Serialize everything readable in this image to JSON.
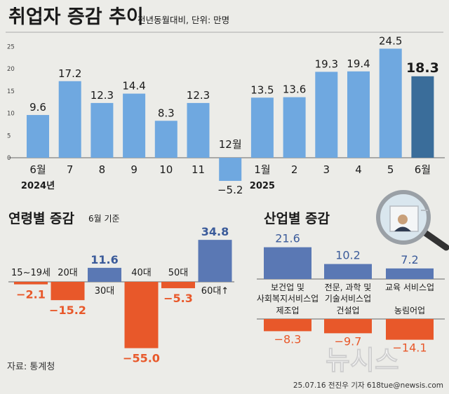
{
  "colors": {
    "background": "#ecece8",
    "positive_bar": "#6fa8e0",
    "highlight_bar": "#3a6d9a",
    "age_positive": "#5a78b4",
    "negative_bar": "#e8582a",
    "negative_text": "#e8582a",
    "text": "#1a1a1a"
  },
  "footer": {
    "source": "자료: 통계청",
    "credit": "25.07.16 전진우 기자 618tue@newsis.com",
    "watermark": "뉴시스"
  },
  "chart_data": [
    {
      "type": "bar",
      "title": "취업자 증감 추이",
      "subtitle": "전년동월대비, 단위: 만명",
      "ylim": [
        -5.2,
        25
      ],
      "yticks": [
        0,
        5,
        10,
        15,
        20,
        25
      ],
      "grid": false,
      "categories": [
        "6월",
        "7",
        "8",
        "9",
        "10",
        "11",
        "12월",
        "1월",
        "2",
        "3",
        "4",
        "5",
        "6월"
      ],
      "year_labels": [
        "2024년",
        "2025"
      ],
      "values": [
        9.6,
        17.2,
        12.3,
        14.4,
        8.3,
        12.3,
        -5.2,
        13.5,
        13.6,
        19.3,
        19.4,
        24.5,
        18.3
      ],
      "highlight_index": 12
    },
    {
      "type": "bar",
      "title": "연령별 증감",
      "subtitle": "6월 기준",
      "categories": [
        "15~19세",
        "20대",
        "30대",
        "40대",
        "50대",
        "60대↑"
      ],
      "values": [
        -2.1,
        -15.2,
        11.6,
        -55.0,
        -5.3,
        34.8
      ],
      "value_labels": [
        "−2.1",
        "−15.2",
        "11.6",
        "−55.0",
        "−5.3",
        "34.8"
      ]
    },
    {
      "type": "bar",
      "title": "산업별 증감",
      "categories": [
        "보건업 및 사회복지서비스업",
        "전문, 과학 및 기술서비스업",
        "교육 서비스업",
        "제조업",
        "건설업",
        "농림어업"
      ],
      "category_lines": [
        [
          "보건업 및",
          "사회복지서비스업"
        ],
        [
          "전문, 과학 및",
          "기술서비스업"
        ],
        [
          "교육 서비스업"
        ],
        [
          "제조업"
        ],
        [
          "건설업"
        ],
        [
          "농림어업"
        ]
      ],
      "values": [
        21.6,
        10.2,
        7.2,
        -8.3,
        -9.7,
        -14.1
      ],
      "value_labels": [
        "21.6",
        "10.2",
        "7.2",
        "−8.3",
        "−9.7",
        "−14.1"
      ]
    }
  ]
}
